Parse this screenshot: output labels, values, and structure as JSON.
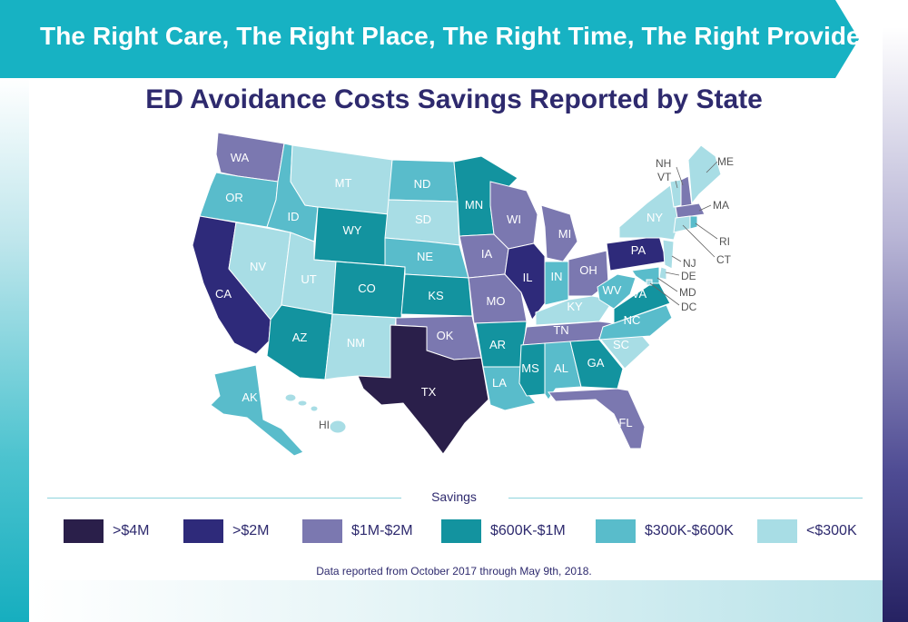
{
  "banner": {
    "title": "The Right Care, The Right Place, The Right Time, The Right Provider"
  },
  "map": {
    "title": "ED Avoidance Costs Savings Reported by State",
    "states": {
      "WA": {
        "label": "WA",
        "category": "1m-2m"
      },
      "OR": {
        "label": "OR",
        "category": "300k-600k"
      },
      "CA": {
        "label": "CA",
        "category": "gt2m"
      },
      "NV": {
        "label": "NV",
        "category": "lt300k"
      },
      "ID": {
        "label": "ID",
        "category": "300k-600k"
      },
      "MT": {
        "label": "MT",
        "category": "lt300k"
      },
      "WY": {
        "label": "WY",
        "category": "600k-1m"
      },
      "UT": {
        "label": "UT",
        "category": "lt300k"
      },
      "AZ": {
        "label": "AZ",
        "category": "600k-1m"
      },
      "CO": {
        "label": "CO",
        "category": "600k-1m"
      },
      "NM": {
        "label": "NM",
        "category": "lt300k"
      },
      "ND": {
        "label": "ND",
        "category": "300k-600k"
      },
      "SD": {
        "label": "SD",
        "category": "lt300k"
      },
      "NE": {
        "label": "NE",
        "category": "300k-600k"
      },
      "KS": {
        "label": "KS",
        "category": "600k-1m"
      },
      "OK": {
        "label": "OK",
        "category": "1m-2m"
      },
      "TX": {
        "label": "TX",
        "category": "gt4m"
      },
      "MN": {
        "label": "MN",
        "category": "600k-1m"
      },
      "IA": {
        "label": "IA",
        "category": "1m-2m"
      },
      "MO": {
        "label": "MO",
        "category": "1m-2m"
      },
      "AR": {
        "label": "AR",
        "category": "600k-1m"
      },
      "LA": {
        "label": "LA",
        "category": "300k-600k"
      },
      "WI": {
        "label": "WI",
        "category": "1m-2m"
      },
      "IL": {
        "label": "IL",
        "category": "gt2m"
      },
      "MI": {
        "label": "MI",
        "category": "1m-2m"
      },
      "IN": {
        "label": "IN",
        "category": "300k-600k"
      },
      "OH": {
        "label": "OH",
        "category": "1m-2m"
      },
      "KY": {
        "label": "KY",
        "category": "lt300k"
      },
      "TN": {
        "label": "TN",
        "category": "1m-2m"
      },
      "MS": {
        "label": "MS",
        "category": "600k-1m"
      },
      "AL": {
        "label": "AL",
        "category": "300k-600k"
      },
      "GA": {
        "label": "GA",
        "category": "600k-1m"
      },
      "FL": {
        "label": "FL",
        "category": "1m-2m"
      },
      "SC": {
        "label": "SC",
        "category": "lt300k"
      },
      "NC": {
        "label": "NC",
        "category": "300k-600k"
      },
      "VA": {
        "label": "VA",
        "category": "600k-1m"
      },
      "WV": {
        "label": "WV",
        "category": "300k-600k"
      },
      "PA": {
        "label": "PA",
        "category": "gt2m"
      },
      "NY": {
        "label": "NY",
        "category": "lt300k"
      },
      "ME": {
        "label": "ME",
        "category": "lt300k"
      },
      "NH": {
        "label": "NH",
        "category": "1m-2m"
      },
      "VT": {
        "label": "VT",
        "category": "lt300k"
      },
      "MA": {
        "label": "MA",
        "category": "1m-2m"
      },
      "RI": {
        "label": "RI",
        "category": "300k-600k"
      },
      "CT": {
        "label": "CT",
        "category": "lt300k"
      },
      "NJ": {
        "label": "NJ",
        "category": "lt300k"
      },
      "DE": {
        "label": "DE",
        "category": "lt300k"
      },
      "MD": {
        "label": "MD",
        "category": "300k-600k"
      },
      "DC": {
        "label": "DC",
        "category": "lt300k"
      },
      "AK": {
        "label": "AK",
        "category": "300k-600k"
      },
      "HI": {
        "label": "HI",
        "category": "lt300k"
      }
    }
  },
  "legend": {
    "title": "Savings",
    "items": [
      {
        "key": "gt4m",
        "label": ">$4M",
        "color": "#2a1f4a"
      },
      {
        "key": "gt2m",
        "label": ">$2M",
        "color": "#2e2a7a"
      },
      {
        "key": "1m-2m",
        "label": "$1M-$2M",
        "color": "#7b78b0"
      },
      {
        "key": "600k-1m",
        "label": "$600K-$1M",
        "color": "#13939f"
      },
      {
        "key": "300k-600k",
        "label": "$300K-$600K",
        "color": "#59bccb"
      },
      {
        "key": "lt300k",
        "label": "<$300K",
        "color": "#a8dde5"
      }
    ]
  },
  "footnote": "Data reported from October 2017 through May 9th, 2018."
}
